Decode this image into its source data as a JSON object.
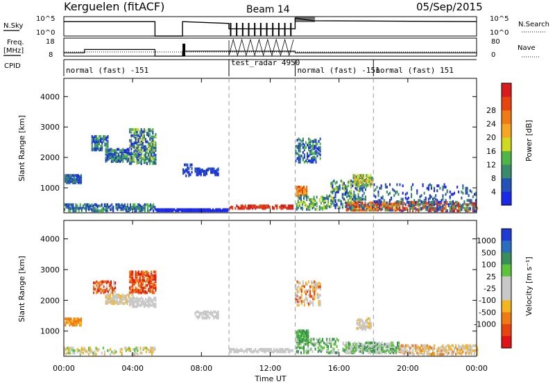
{
  "header": {
    "title": "Kerguelen (fitACF)",
    "beam": "Beam 14",
    "date": "05/Sep/2015"
  },
  "top_panels": {
    "nsky_label": "N.Sky",
    "nsky_ticks": [
      "10^5",
      "10^0"
    ],
    "nsearch_label": "N.Search",
    "nsearch_ticks": [
      "10^5",
      "10^0"
    ],
    "freq_label_1": "Freq.",
    "freq_label_2": "[MHz]",
    "freq_ticks": [
      "18",
      "8"
    ],
    "nave_label": "Nave",
    "nave_ticks": [
      "80",
      "0"
    ],
    "cpid_label": "CPID",
    "cpid_segments": [
      {
        "label": "normal (fast) -151",
        "start_hour": 0.0
      },
      {
        "label": "test_radar 4950",
        "start_hour": 9.6
      },
      {
        "label": "normal (fast) -151",
        "start_hour": 13.45
      },
      {
        "label": "normal (fast) 151",
        "start_hour": 18.0
      }
    ]
  },
  "time_axis": {
    "label": "Time UT",
    "ticks": [
      "00:00",
      "04:00",
      "08:00",
      "12:00",
      "16:00",
      "20:00",
      "00:00"
    ],
    "range_hours": [
      0,
      24
    ]
  },
  "dashed_lines_hours": [
    9.6,
    13.45,
    18.0
  ],
  "power_panel": {
    "ylabel": "Slant Range [km]",
    "yticks": [
      "1000",
      "2000",
      "3000",
      "4000"
    ],
    "ylim": [
      180,
      4600
    ],
    "colorbar_label": "Power [dB]",
    "colorbar_ticks": [
      "4",
      "8",
      "12",
      "16",
      "20",
      "24",
      "28"
    ],
    "colors": [
      "#1a28e8",
      "#2352b8",
      "#3a8a6c",
      "#4fb547",
      "#cfd91e",
      "#f5a623",
      "#f07b14",
      "#e8450e",
      "#d81c1c"
    ]
  },
  "velocity_panel": {
    "ylabel": "Slant Range [km]",
    "yticks": [
      "1000",
      "2000",
      "3000",
      "4000"
    ],
    "ylim": [
      180,
      4600
    ],
    "colorbar_label": "Velocity [m s⁻¹]",
    "colorbar_ticks": [
      "1000",
      "500",
      "100",
      "25",
      "-25",
      "-100",
      "-500",
      "-1000"
    ],
    "colors": [
      "#1f3bd6",
      "#2a6fbf",
      "#3a8e58",
      "#5cc43a",
      "#c8c8c8",
      "#c8c8c8",
      "#f5b51e",
      "#f07b14",
      "#e8450e",
      "#e01414"
    ]
  },
  "chart_data": {
    "type": "heatmap",
    "title": "Kerguelen (fitACF)",
    "xlabel": "Time UT",
    "ylabel": "Slant Range [km]",
    "xlim_hours": [
      0,
      24
    ],
    "ylim": [
      180,
      4600
    ],
    "nsky_trace": [
      [
        0,
        0.8
      ],
      [
        5.3,
        0.8
      ],
      [
        5.3,
        0.0
      ],
      [
        6.9,
        0.0
      ],
      [
        6.9,
        0.8
      ],
      [
        9.6,
        0.7
      ],
      [
        9.6,
        0.4
      ],
      [
        13.45,
        0.4
      ],
      [
        13.45,
        1.0
      ],
      [
        14.5,
        0.85
      ],
      [
        24,
        0.8
      ]
    ],
    "freq_mhz": [
      [
        0,
        10
      ],
      [
        1.2,
        10
      ],
      [
        1.2,
        12
      ],
      [
        5.3,
        12
      ],
      [
        5.3,
        8
      ],
      [
        6.9,
        8
      ],
      [
        6.9,
        11
      ],
      [
        9.6,
        11
      ],
      [
        13.45,
        11
      ],
      [
        13.45,
        10
      ],
      [
        24,
        10
      ]
    ],
    "power_echoes": [
      {
        "t0": 0.0,
        "t1": 5.3,
        "r0": 200,
        "r1": 420,
        "dens": 0.55,
        "levels": [
          0,
          1,
          2,
          3
        ]
      },
      {
        "t0": 0.05,
        "t1": 1.0,
        "r0": 1120,
        "r1": 1400,
        "dens": 0.8,
        "levels": [
          0,
          1,
          2
        ]
      },
      {
        "t0": 1.6,
        "t1": 2.6,
        "r0": 2200,
        "r1": 2650,
        "dens": 0.55,
        "levels": [
          0,
          1,
          2,
          3
        ]
      },
      {
        "t0": 2.4,
        "t1": 3.8,
        "r0": 1820,
        "r1": 2250,
        "dens": 0.6,
        "levels": [
          0,
          1,
          2,
          3
        ]
      },
      {
        "t0": 3.8,
        "t1": 5.3,
        "r0": 1750,
        "r1": 2900,
        "dens": 0.5,
        "levels": [
          0,
          1,
          2,
          3,
          4
        ]
      },
      {
        "t0": 6.9,
        "t1": 7.4,
        "r0": 1350,
        "r1": 1750,
        "dens": 0.35,
        "levels": [
          0,
          1
        ]
      },
      {
        "t0": 7.6,
        "t1": 9.0,
        "r0": 1380,
        "r1": 1600,
        "dens": 0.55,
        "levels": [
          0,
          1
        ]
      },
      {
        "t0": 5.3,
        "t1": 9.6,
        "r0": 200,
        "r1": 260,
        "dens": 0.9,
        "levels": [
          0
        ]
      },
      {
        "t0": 9.6,
        "t1": 13.3,
        "r0": 280,
        "r1": 380,
        "dens": 0.7,
        "levels": [
          7,
          8
        ]
      },
      {
        "t0": 13.45,
        "t1": 14.9,
        "r0": 1800,
        "r1": 2600,
        "dens": 0.35,
        "levels": [
          0,
          1,
          2,
          3
        ]
      },
      {
        "t0": 13.5,
        "t1": 14.1,
        "r0": 700,
        "r1": 1000,
        "dens": 0.7,
        "levels": [
          5,
          6,
          7
        ]
      },
      {
        "t0": 13.5,
        "t1": 15.5,
        "r0": 250,
        "r1": 700,
        "dens": 0.35,
        "levels": [
          1,
          2,
          3,
          4
        ]
      },
      {
        "t0": 15.5,
        "t1": 17.5,
        "r0": 300,
        "r1": 1200,
        "dens": 0.3,
        "levels": [
          0,
          1,
          2,
          3,
          4
        ]
      },
      {
        "t0": 16.8,
        "t1": 17.9,
        "r0": 1000,
        "r1": 1400,
        "dens": 0.55,
        "levels": [
          2,
          3,
          4,
          5
        ]
      },
      {
        "t0": 16.4,
        "t1": 19.5,
        "r0": 220,
        "r1": 500,
        "dens": 0.7,
        "levels": [
          1,
          3,
          5,
          6,
          7,
          8
        ]
      },
      {
        "t0": 19.5,
        "t1": 24.0,
        "r0": 200,
        "r1": 520,
        "dens": 0.55,
        "levels": [
          0,
          1,
          2,
          3,
          6,
          7,
          8
        ]
      },
      {
        "t0": 18.0,
        "t1": 24.0,
        "r0": 500,
        "r1": 1100,
        "dens": 0.12,
        "levels": [
          0,
          1,
          2
        ]
      }
    ],
    "velocity_echoes": [
      {
        "t0": 0.0,
        "t1": 5.3,
        "r0": 200,
        "r1": 420,
        "dens": 0.35,
        "levels": [
          4,
          5,
          3,
          6
        ]
      },
      {
        "t0": 0.05,
        "t1": 1.0,
        "r0": 1150,
        "r1": 1380,
        "dens": 0.85,
        "levels": [
          6,
          7
        ]
      },
      {
        "t0": 1.7,
        "t1": 3.0,
        "r0": 2200,
        "r1": 2600,
        "dens": 0.5,
        "levels": [
          7,
          8,
          9,
          4
        ]
      },
      {
        "t0": 2.4,
        "t1": 4.0,
        "r0": 1850,
        "r1": 2150,
        "dens": 0.6,
        "levels": [
          4,
          5,
          6
        ]
      },
      {
        "t0": 3.8,
        "t1": 5.3,
        "r0": 2200,
        "r1": 2900,
        "dens": 0.5,
        "levels": [
          7,
          8,
          9
        ]
      },
      {
        "t0": 3.8,
        "t1": 5.3,
        "r0": 1750,
        "r1": 2050,
        "dens": 0.6,
        "levels": [
          4,
          5
        ]
      },
      {
        "t0": 7.6,
        "t1": 9.0,
        "r0": 1380,
        "r1": 1600,
        "dens": 0.55,
        "levels": [
          4,
          5
        ]
      },
      {
        "t0": 9.6,
        "t1": 13.3,
        "r0": 280,
        "r1": 380,
        "dens": 0.7,
        "levels": [
          4,
          5
        ]
      },
      {
        "t0": 13.5,
        "t1": 14.2,
        "r0": 600,
        "r1": 1000,
        "dens": 0.7,
        "levels": [
          3,
          2
        ]
      },
      {
        "t0": 13.45,
        "t1": 14.9,
        "r0": 1800,
        "r1": 2600,
        "dens": 0.35,
        "levels": [
          4,
          5,
          6,
          8
        ]
      },
      {
        "t0": 13.5,
        "t1": 16.0,
        "r0": 250,
        "r1": 700,
        "dens": 0.35,
        "levels": [
          3,
          2,
          4
        ]
      },
      {
        "t0": 16.2,
        "t1": 19.5,
        "r0": 250,
        "r1": 600,
        "dens": 0.6,
        "levels": [
          3,
          2,
          4,
          5
        ]
      },
      {
        "t0": 17.0,
        "t1": 17.9,
        "r0": 1000,
        "r1": 1400,
        "dens": 0.5,
        "levels": [
          4,
          5,
          6
        ]
      },
      {
        "t0": 19.5,
        "t1": 24.0,
        "r0": 200,
        "r1": 500,
        "dens": 0.5,
        "levels": [
          4,
          5,
          6,
          7
        ]
      }
    ]
  }
}
